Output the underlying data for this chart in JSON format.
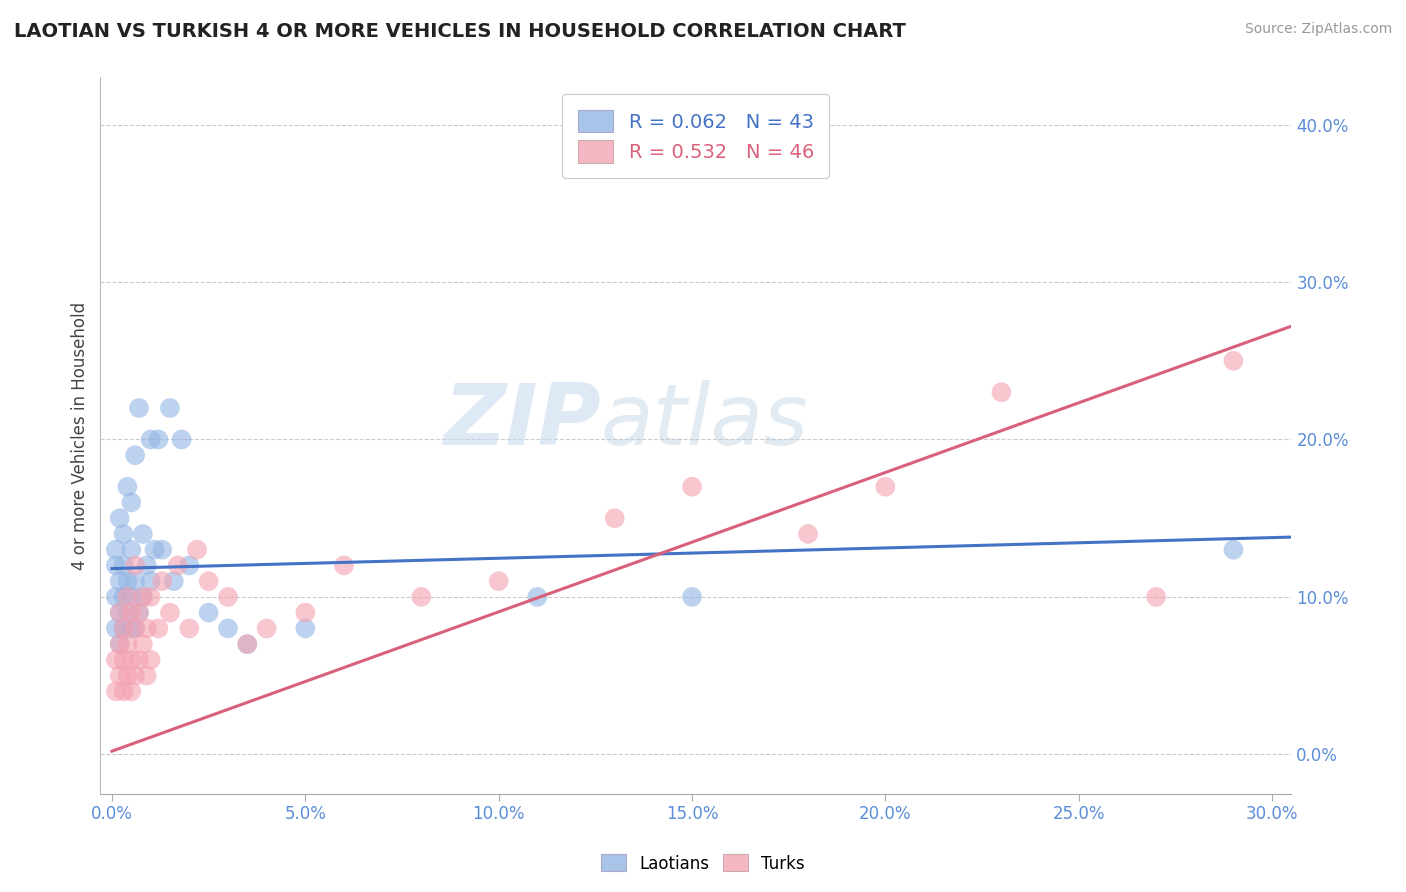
{
  "title": "LAOTIAN VS TURKISH 4 OR MORE VEHICLES IN HOUSEHOLD CORRELATION CHART",
  "source": "Source: ZipAtlas.com",
  "xlabel_ticks": [
    0.0,
    0.05,
    0.1,
    0.15,
    0.2,
    0.25,
    0.3
  ],
  "ylabel_ticks": [
    0.0,
    0.1,
    0.2,
    0.3,
    0.4
  ],
  "xlim": [
    -0.003,
    0.305
  ],
  "ylim": [
    -0.025,
    0.43
  ],
  "laotian_R": 0.062,
  "laotian_N": 43,
  "turkish_R": 0.532,
  "turkish_N": 46,
  "laotian_color": "#92b4e3",
  "turkish_color": "#f4a0b0",
  "laotian_line_color": "#4472c4",
  "turkish_line_color": "#d9607a",
  "watermark_left": "ZIP",
  "watermark_right": "atlas",
  "background_color": "#ffffff",
  "legend_color_laotian": "#a8c4e8",
  "legend_color_turkish": "#f4b8c4",
  "laotian_line_x0": 0.0,
  "laotian_line_y0": 0.118,
  "laotian_line_x1": 0.305,
  "laotian_line_y1": 0.138,
  "turkish_line_x0": 0.0,
  "turkish_line_y0": 0.002,
  "turkish_line_x1": 0.305,
  "turkish_line_y1": 0.272,
  "laotian_scatter_x": [
    0.001,
    0.001,
    0.001,
    0.001,
    0.002,
    0.002,
    0.002,
    0.002,
    0.003,
    0.003,
    0.003,
    0.003,
    0.004,
    0.004,
    0.004,
    0.005,
    0.005,
    0.005,
    0.005,
    0.006,
    0.006,
    0.006,
    0.007,
    0.007,
    0.008,
    0.008,
    0.009,
    0.01,
    0.01,
    0.011,
    0.012,
    0.013,
    0.015,
    0.016,
    0.018,
    0.02,
    0.025,
    0.03,
    0.035,
    0.05,
    0.11,
    0.15,
    0.29
  ],
  "laotian_scatter_y": [
    0.08,
    0.1,
    0.12,
    0.13,
    0.07,
    0.09,
    0.11,
    0.15,
    0.08,
    0.1,
    0.12,
    0.14,
    0.09,
    0.11,
    0.17,
    0.08,
    0.1,
    0.13,
    0.16,
    0.08,
    0.11,
    0.19,
    0.09,
    0.22,
    0.1,
    0.14,
    0.12,
    0.11,
    0.2,
    0.13,
    0.2,
    0.13,
    0.22,
    0.11,
    0.2,
    0.12,
    0.09,
    0.08,
    0.07,
    0.08,
    0.1,
    0.1,
    0.13
  ],
  "turkish_scatter_x": [
    0.001,
    0.001,
    0.002,
    0.002,
    0.002,
    0.003,
    0.003,
    0.003,
    0.004,
    0.004,
    0.004,
    0.005,
    0.005,
    0.005,
    0.006,
    0.006,
    0.006,
    0.007,
    0.007,
    0.008,
    0.008,
    0.009,
    0.009,
    0.01,
    0.01,
    0.012,
    0.013,
    0.015,
    0.017,
    0.02,
    0.022,
    0.025,
    0.03,
    0.035,
    0.04,
    0.05,
    0.06,
    0.08,
    0.1,
    0.13,
    0.15,
    0.18,
    0.2,
    0.23,
    0.27,
    0.29
  ],
  "turkish_scatter_y": [
    0.04,
    0.06,
    0.05,
    0.07,
    0.09,
    0.04,
    0.06,
    0.08,
    0.05,
    0.07,
    0.1,
    0.04,
    0.06,
    0.09,
    0.05,
    0.08,
    0.12,
    0.06,
    0.09,
    0.07,
    0.1,
    0.05,
    0.08,
    0.06,
    0.1,
    0.08,
    0.11,
    0.09,
    0.12,
    0.08,
    0.13,
    0.11,
    0.1,
    0.07,
    0.08,
    0.09,
    0.12,
    0.1,
    0.11,
    0.15,
    0.17,
    0.14,
    0.17,
    0.23,
    0.1,
    0.25
  ]
}
